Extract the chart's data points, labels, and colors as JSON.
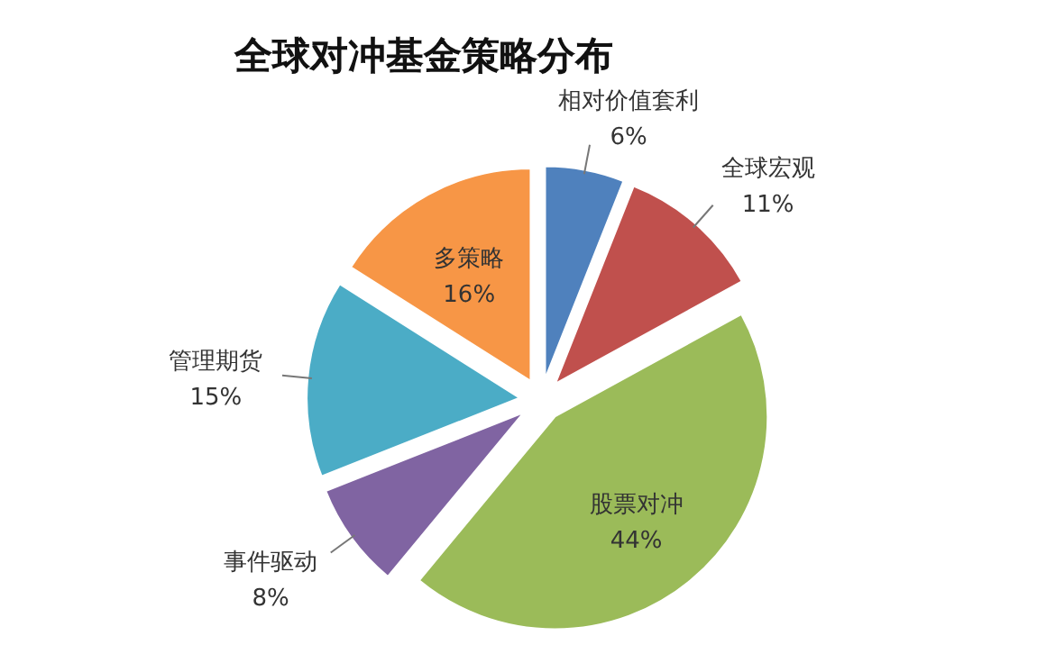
{
  "chart_data": {
    "type": "pie",
    "title": "全球对冲基金策略分布",
    "categories": [
      "相对价值套利",
      "全球宏观",
      "股票对冲",
      "事件驱动",
      "管理期货",
      "多策略"
    ],
    "values": [
      6,
      11,
      44,
      8,
      15,
      16
    ],
    "colors": [
      "#4f81bd",
      "#c0504d",
      "#9bbb59",
      "#8064a2",
      "#4bacc6",
      "#f79646"
    ],
    "value_labels": [
      "6%",
      "11%",
      "44%",
      "8%",
      "15%",
      "16%"
    ],
    "legend": false
  }
}
